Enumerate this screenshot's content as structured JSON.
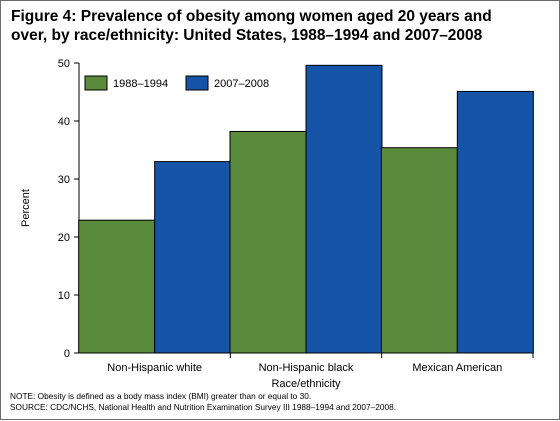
{
  "title": {
    "line1": "Figure 4: Prevalence of obesity among women aged 20 years and",
    "line2": "over, by race/ethnicity: United States, 1988–1994 and 2007–2008"
  },
  "notes": {
    "note": "NOTE: Obesity is defined as a body mass index (BMI) greater than or equal to 30.",
    "source": "SOURCE: CDC/NCHS, National Health and Nutrition Examination Survey III 1988–1994 and 2007–2008."
  },
  "colors": {
    "series_1988": "#5a8a3c",
    "series_2007": "#1654a8"
  },
  "chart_data": {
    "type": "bar",
    "title": "Figure 4: Prevalence of obesity among women aged 20 years and over, by race/ethnicity: United States, 1988–1994 and 2007–2008",
    "xlabel": "Race/ethnicity",
    "ylabel": "Percent",
    "ylim": [
      0,
      50
    ],
    "yticks": [
      0,
      10,
      20,
      30,
      40,
      50
    ],
    "categories": [
      "Non-Hispanic white",
      "Non-Hispanic black",
      "Mexican American"
    ],
    "series": [
      {
        "name": "1988–1994",
        "values": [
          22.9,
          38.2,
          35.4
        ]
      },
      {
        "name": "2007–2008",
        "values": [
          33.0,
          49.6,
          45.1
        ]
      }
    ],
    "grid": false,
    "legend_position": "top-left"
  }
}
